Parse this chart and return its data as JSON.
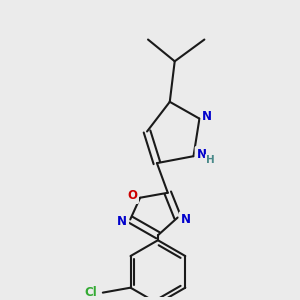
{
  "bg_color": "#ebebeb",
  "bond_color": "#1a1a1a",
  "bond_width": 1.5,
  "atom_colors": {
    "N": "#0000cc",
    "O": "#cc0000",
    "Cl": "#33aa33",
    "C": "#1a1a1a",
    "H": "#4a8a8a"
  },
  "font_size_atom": 8.5,
  "font_size_H": 7.5,
  "scale": 1.0
}
